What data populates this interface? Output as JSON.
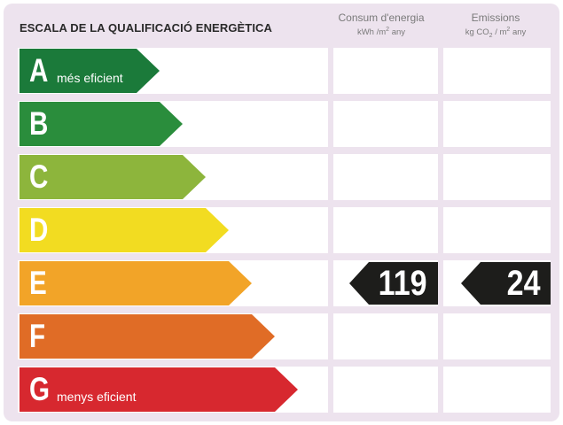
{
  "title": "ESCALA DE LA QUALIFICACIÓ ENERGÈTICA",
  "columns": {
    "consum": {
      "label": "Consum d'energia",
      "unit_prefix": "kWh /m",
      "unit_exp": "2",
      "unit_suffix": " any"
    },
    "emissions": {
      "label": "Emissions",
      "unit_prefix": "kg CO",
      "unit_sub": "2",
      "unit_mid": " / m",
      "unit_exp": "2",
      "unit_suffix": " any"
    }
  },
  "classes": [
    {
      "letter": "A",
      "label": "més eficient",
      "color": "#1b7a3a"
    },
    {
      "letter": "B",
      "label": "",
      "color": "#2a8d3c"
    },
    {
      "letter": "C",
      "label": "",
      "color": "#8db53c"
    },
    {
      "letter": "D",
      "label": "",
      "color": "#f2dc21"
    },
    {
      "letter": "E",
      "label": "",
      "color": "#f2a428"
    },
    {
      "letter": "F",
      "label": "",
      "color": "#e06c26"
    },
    {
      "letter": "G",
      "label": "menys eficient",
      "color": "#d7282f"
    }
  ],
  "rating": {
    "class": "E",
    "consum_value": "119",
    "emissions_value": "24"
  }
}
